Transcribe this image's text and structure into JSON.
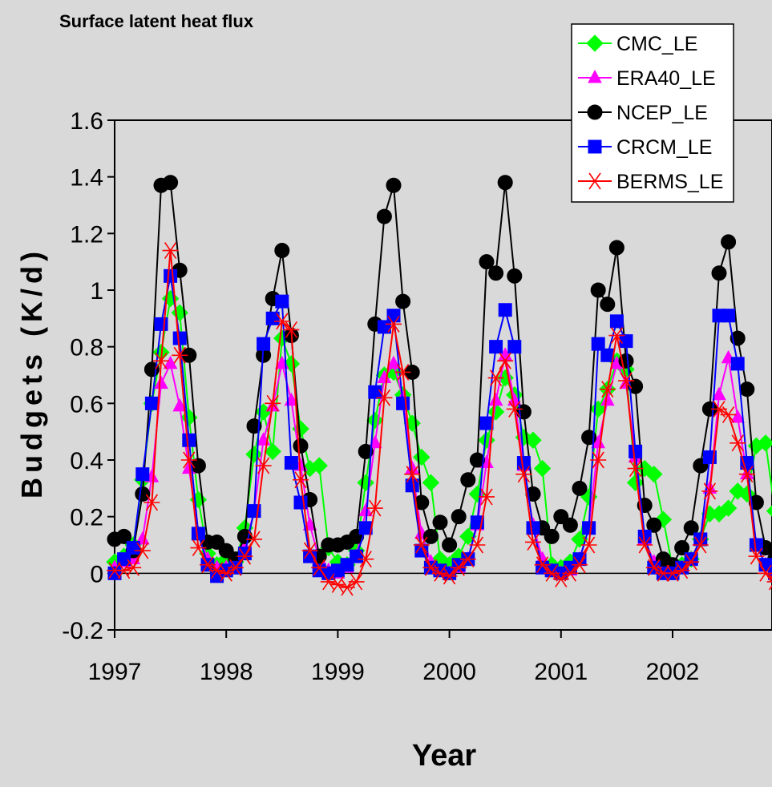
{
  "chart_data": {
    "type": "line",
    "title": "Surface latent heat flux",
    "xlabel": "Year",
    "ylabel": "Budgets (K/d)",
    "ylim": [
      -0.2,
      1.6
    ],
    "yticks": [
      "-0.2",
      "0",
      "0.2",
      "0.4",
      "0.6",
      "0.8",
      "1",
      "1.2",
      "1.4",
      "1.6"
    ],
    "xticks": [
      "1997",
      "1998",
      "1999",
      "2000",
      "2001",
      "2002"
    ],
    "xlim_months": [
      0,
      72
    ],
    "legend_position": "top-right",
    "grid": false,
    "series": [
      {
        "name": "CMC_LE",
        "color": "#00ff00",
        "marker": "diamond",
        "values": [
          0.04,
          0.06,
          0.1,
          0.33,
          0.6,
          0.78,
          0.97,
          0.92,
          0.55,
          0.26,
          0.07,
          0.03,
          0.05,
          0.04,
          0.16,
          0.42,
          0.57,
          0.43,
          0.83,
          0.74,
          0.51,
          0.37,
          0.38,
          0.09,
          0.04,
          0.03,
          0.08,
          0.32,
          0.54,
          0.7,
          0.71,
          0.63,
          0.53,
          0.41,
          0.32,
          0.05,
          0.03,
          0.06,
          0.13,
          0.28,
          0.47,
          0.57,
          0.69,
          0.63,
          0.48,
          0.47,
          0.37,
          0.03,
          0.02,
          0.04,
          0.12,
          0.27,
          0.58,
          0.65,
          0.75,
          0.72,
          0.32,
          0.37,
          0.35,
          0.19,
          0.02,
          0.03,
          0.05,
          0.12,
          0.21,
          0.21,
          0.23,
          0.29,
          0.28,
          0.45,
          0.46,
          0.22
        ]
      },
      {
        "name": "ERA40_LE",
        "color": "#ff00ff",
        "marker": "triangle",
        "values": [
          0.02,
          0.04,
          0.05,
          0.12,
          0.34,
          0.67,
          0.74,
          0.59,
          0.37,
          0.14,
          0.05,
          0.02,
          0.02,
          0.04,
          0.09,
          0.22,
          0.47,
          0.59,
          0.74,
          0.61,
          0.38,
          0.17,
          0.05,
          0.01,
          0.0,
          0.02,
          0.06,
          0.22,
          0.46,
          0.69,
          0.74,
          0.62,
          0.37,
          0.14,
          0.04,
          0.01,
          0.0,
          0.02,
          0.05,
          0.17,
          0.39,
          0.61,
          0.77,
          0.61,
          0.38,
          0.17,
          0.05,
          0.01,
          0.0,
          0.01,
          0.05,
          0.16,
          0.46,
          0.61,
          0.74,
          0.67,
          0.41,
          0.12,
          0.04,
          0.0,
          0.0,
          0.02,
          0.05,
          0.12,
          0.3,
          0.63,
          0.76,
          0.55,
          0.35,
          0.1,
          0.03,
          0.0
        ]
      },
      {
        "name": "NCEP_LE",
        "color": "#000000",
        "marker": "circle",
        "values": [
          0.12,
          0.13,
          0.08,
          0.28,
          0.72,
          1.37,
          1.38,
          1.07,
          0.77,
          0.38,
          0.11,
          0.11,
          0.08,
          0.05,
          0.13,
          0.52,
          0.77,
          0.97,
          1.14,
          0.84,
          0.45,
          0.26,
          0.06,
          0.1,
          0.1,
          0.11,
          0.13,
          0.43,
          0.88,
          1.26,
          1.37,
          0.96,
          0.71,
          0.25,
          0.13,
          0.18,
          0.1,
          0.2,
          0.33,
          0.4,
          1.1,
          1.06,
          1.38,
          1.05,
          0.57,
          0.28,
          0.16,
          0.13,
          0.2,
          0.17,
          0.3,
          0.48,
          1.0,
          0.95,
          1.15,
          0.75,
          0.66,
          0.24,
          0.17,
          0.05,
          0.03,
          0.09,
          0.16,
          0.38,
          0.58,
          1.06,
          1.17,
          0.83,
          0.65,
          0.25,
          0.09,
          0.05
        ]
      },
      {
        "name": "CRCM_LE",
        "color": "#0000ff",
        "marker": "square",
        "values": [
          0.0,
          0.05,
          0.09,
          0.35,
          0.6,
          0.88,
          1.05,
          0.83,
          0.47,
          0.14,
          0.03,
          -0.01,
          0.01,
          0.02,
          0.07,
          0.22,
          0.81,
          0.9,
          0.96,
          0.39,
          0.25,
          0.06,
          0.01,
          0.0,
          0.01,
          0.03,
          0.06,
          0.16,
          0.64,
          0.87,
          0.91,
          0.6,
          0.31,
          0.08,
          0.02,
          0.01,
          0.0,
          0.03,
          0.05,
          0.18,
          0.53,
          0.8,
          0.93,
          0.8,
          0.39,
          0.16,
          0.02,
          0.01,
          0.0,
          0.02,
          0.05,
          0.16,
          0.81,
          0.77,
          0.89,
          0.82,
          0.43,
          0.13,
          0.02,
          0.0,
          0.0,
          0.02,
          0.05,
          0.12,
          0.41,
          0.91,
          0.91,
          0.74,
          0.39,
          0.1,
          0.03,
          0.0
        ]
      },
      {
        "name": "BERMS_LE",
        "color": "#ff0000",
        "marker": "asterisk",
        "values": [
          0.01,
          0.01,
          0.02,
          0.08,
          0.25,
          0.75,
          1.14,
          0.77,
          0.4,
          0.09,
          0.03,
          0.01,
          0.0,
          0.02,
          0.06,
          0.12,
          0.38,
          0.6,
          0.89,
          0.86,
          0.33,
          0.08,
          0.02,
          -0.03,
          -0.04,
          -0.05,
          -0.03,
          0.05,
          0.23,
          0.62,
          0.88,
          0.71,
          0.35,
          0.1,
          0.02,
          0.0,
          -0.01,
          0.02,
          0.05,
          0.1,
          0.27,
          0.69,
          0.75,
          0.58,
          0.35,
          0.11,
          0.03,
          0.0,
          -0.02,
          0.0,
          0.03,
          0.1,
          0.4,
          0.65,
          0.84,
          0.68,
          0.37,
          0.1,
          0.02,
          0.0,
          0.0,
          0.01,
          0.04,
          0.1,
          0.29,
          0.58,
          0.56,
          0.46,
          0.35,
          0.06,
          0.0,
          -0.03
        ]
      }
    ]
  }
}
